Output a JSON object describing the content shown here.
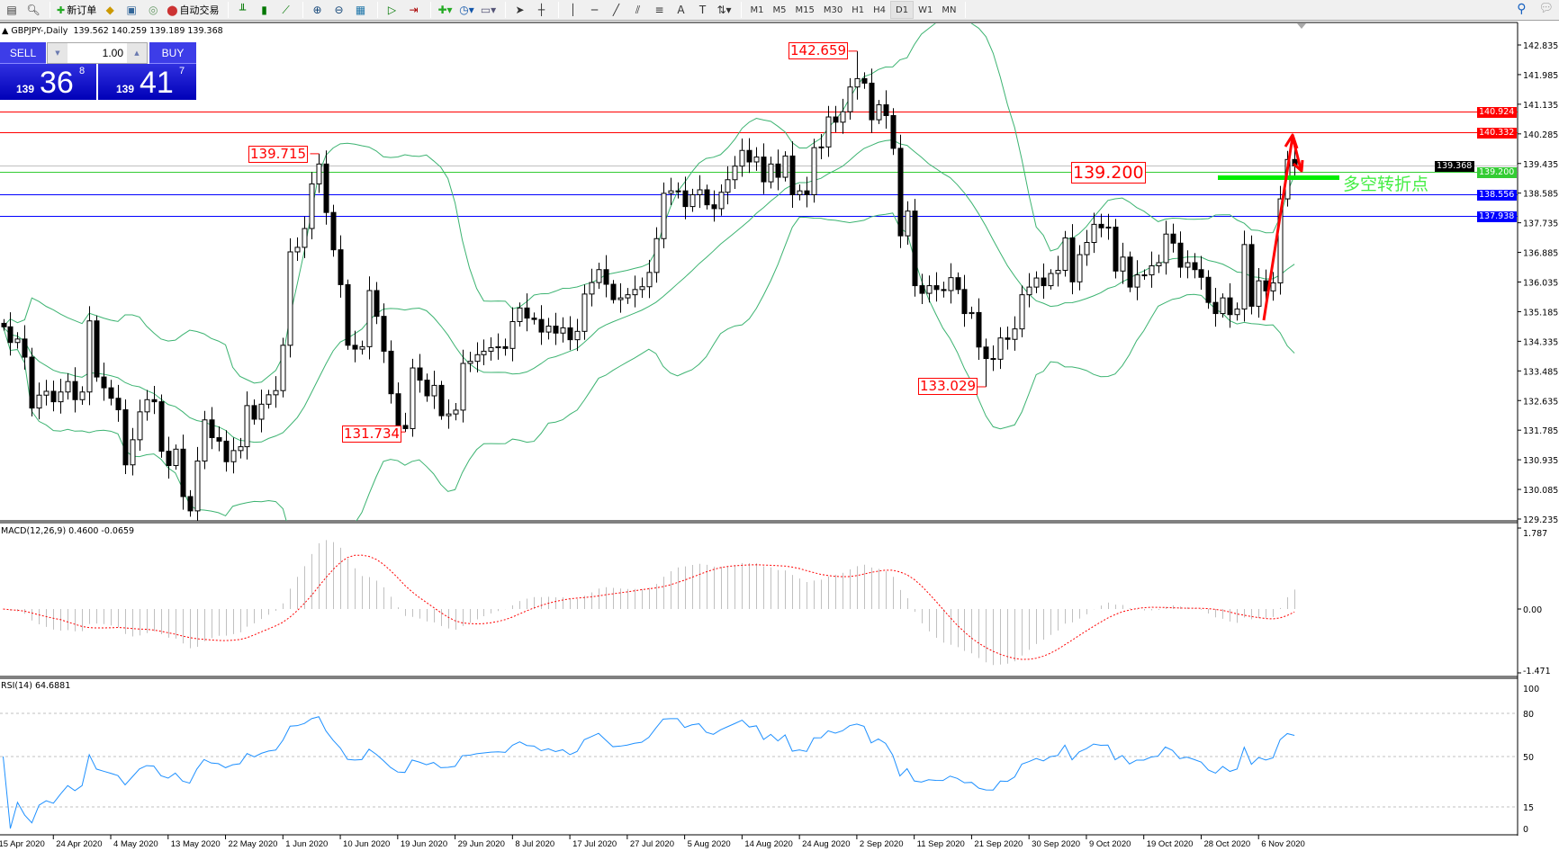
{
  "toolbar": {
    "new_order": "新订单",
    "auto_trade": "自动交易",
    "timeframes": [
      "M1",
      "M5",
      "M15",
      "M30",
      "H1",
      "H4",
      "D1",
      "W1",
      "MN"
    ],
    "active_timeframe": "D1",
    "icons": [
      "new-chart-icon",
      "profiles-icon",
      "new-order-icon",
      "market-watch-icon",
      "navigator-icon",
      "signals-icon",
      "auto-trade-icon",
      "bar-chart-icon",
      "candlestick-icon",
      "line-chart-icon",
      "zoom-in-icon",
      "zoom-out-icon",
      "tile-windows-icon",
      "autoscroll-icon",
      "chart-shift-icon",
      "indicators-icon",
      "periods-icon",
      "templates-icon",
      "cursor-icon",
      "crosshair-icon",
      "vertical-line-icon",
      "horizontal-line-icon",
      "trendline-icon",
      "fibonacci-icon",
      "fibo-fan-icon",
      "text-icon",
      "label-icon",
      "arrows-icon",
      "search-icon",
      "community-icon"
    ]
  },
  "chart_header": {
    "symbol": "GBPJPY-,Daily",
    "ohlc": "139.562 140.259 139.189 139.368"
  },
  "trade_panel": {
    "sell_label": "SELL",
    "buy_label": "BUY",
    "lot": "1.00",
    "sell_prefix": "139",
    "sell_big": "36",
    "sell_sup": "8",
    "buy_prefix": "139",
    "buy_big": "41",
    "buy_sup": "7"
  },
  "chart_data": {
    "type": "candlestick",
    "symbol": "GBPJPY",
    "timeframe": "Daily",
    "closes": [
      134.75,
      134.3,
      134.4,
      133.88,
      132.42,
      132.79,
      132.9,
      132.6,
      132.88,
      133.18,
      132.66,
      132.88,
      134.92,
      133.31,
      133.0,
      132.7,
      132.37,
      130.79,
      131.51,
      132.31,
      132.66,
      132.6,
      131.18,
      130.77,
      131.24,
      129.88,
      129.47,
      130.9,
      132.08,
      131.57,
      131.47,
      130.88,
      131.2,
      131.31,
      132.49,
      132.1,
      132.53,
      132.8,
      132.92,
      134.22,
      136.9,
      137.03,
      137.57,
      138.85,
      139.42,
      138.03,
      136.96,
      135.96,
      134.22,
      134.11,
      134.18,
      135.79,
      135.05,
      134.05,
      132.83,
      131.92,
      131.83,
      133.57,
      133.22,
      132.77,
      133.07,
      132.2,
      132.25,
      132.36,
      133.7,
      133.76,
      133.95,
      134.05,
      134.15,
      134.18,
      134.13,
      134.9,
      135.29,
      135.0,
      134.96,
      134.6,
      134.77,
      134.57,
      134.72,
      134.38,
      134.62,
      135.69,
      136.02,
      136.39,
      135.97,
      135.53,
      135.58,
      135.67,
      135.82,
      135.9,
      136.31,
      137.28,
      138.58,
      138.65,
      138.65,
      138.2,
      138.54,
      138.68,
      138.25,
      138.14,
      138.61,
      138.97,
      139.36,
      139.81,
      139.48,
      139.62,
      138.91,
      139.42,
      139.04,
      139.65,
      138.54,
      138.65,
      138.54,
      139.89,
      139.91,
      140.77,
      140.62,
      140.92,
      141.63,
      141.87,
      141.74,
      140.69,
      141.12,
      140.81,
      139.87,
      137.36,
      138.07,
      135.93,
      135.71,
      135.93,
      135.82,
      135.79,
      136.16,
      135.82,
      135.13,
      135.16,
      134.17,
      133.84,
      133.82,
      134.43,
      134.39,
      134.69,
      135.67,
      135.89,
      136.15,
      135.93,
      136.28,
      136.37,
      137.3,
      136.04,
      136.82,
      137.17,
      137.69,
      137.59,
      137.61,
      136.35,
      136.75,
      135.89,
      136.24,
      136.24,
      136.5,
      136.59,
      137.41,
      137.15,
      136.46,
      136.59,
      136.39,
      136.17,
      135.45,
      135.13,
      135.58,
      135.1,
      135.26,
      137.11,
      135.34,
      136.07,
      135.78,
      136.01,
      138.42,
      139.55,
      139.368
    ],
    "price_ticks": [
      "142.835",
      "141.985",
      "141.135",
      "140.285",
      "139.435",
      "138.585",
      "137.735",
      "136.885",
      "136.035",
      "135.185",
      "134.335",
      "133.485",
      "132.635",
      "131.785",
      "130.935",
      "130.085",
      "129.235"
    ],
    "date_ticks": [
      "15 Apr 2020",
      "24 Apr 2020",
      "4 May 2020",
      "13 May 2020",
      "22 May 2020",
      "1 Jun 2020",
      "10 Jun 2020",
      "19 Jun 2020",
      "29 Jun 2020",
      "8 Jul 2020",
      "17 Jul 2020",
      "27 Jul 2020",
      "5 Aug 2020",
      "14 Aug 2020",
      "24 Aug 2020",
      "2 Sep 2020",
      "11 Sep 2020",
      "21 Sep 2020",
      "30 Sep 2020",
      "9 Oct 2020",
      "19 Oct 2020",
      "28 Oct 2020",
      "6 Nov 2020"
    ],
    "levels": [
      {
        "price": "140.924",
        "color": "#ff0000"
      },
      {
        "price": "140.332",
        "color": "#ff0000"
      },
      {
        "price": "139.368",
        "color": "#000000",
        "line": "#c0c0c0"
      },
      {
        "price": "139.200",
        "color": "#33cc33"
      },
      {
        "price": "138.556",
        "color": "#0000ff"
      },
      {
        "price": "137.938",
        "color": "#0000ff"
      }
    ],
    "annotations": [
      {
        "text": "142.659",
        "bar": 119,
        "kind": "high"
      },
      {
        "text": "139.715",
        "bar": 44,
        "kind": "high"
      },
      {
        "text": "131.734",
        "bar": 56,
        "kind": "low"
      },
      {
        "text": "133.029",
        "bar": 137,
        "kind": "low"
      },
      {
        "text": "139.200",
        "kind": "level"
      }
    ],
    "note": "多空转折点",
    "bollinger": {
      "period": 20,
      "deviation": 2,
      "color": "#3cb371"
    },
    "macd": {
      "label": "MACD(12,26,9) 0.4600 -0.0659",
      "ticks": [
        "1.787",
        "0.00",
        "-1.471"
      ],
      "ylim": [
        -1.471,
        1.787
      ],
      "hist_color": "#c0c0c0",
      "signal_color": "#ff0000"
    },
    "rsi": {
      "label": "RSI(14) 64.6881",
      "ticks": [
        "100",
        "80",
        "50",
        "15",
        "0"
      ],
      "ylim": [
        0,
        100
      ],
      "color": "#1e90ff"
    }
  }
}
